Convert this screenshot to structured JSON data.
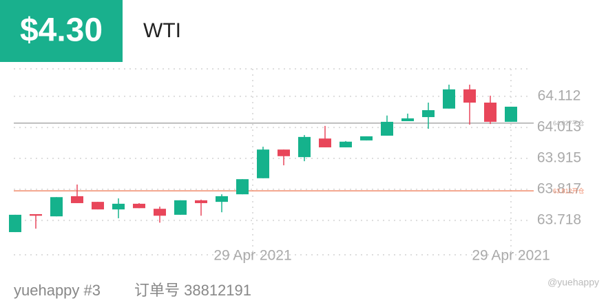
{
  "chart_data": {
    "type": "candlestick",
    "badge": "$4.30",
    "title": "WTI",
    "categories": [
      null,
      null,
      null,
      null,
      null,
      null,
      null,
      null,
      null,
      null,
      null,
      null,
      null,
      null,
      null,
      null,
      null,
      null,
      null,
      null,
      null,
      null,
      null,
      null,
      null
    ],
    "open": [
      63.681,
      63.738,
      63.731,
      63.795,
      63.777,
      63.753,
      63.771,
      63.755,
      63.736,
      63.782,
      63.777,
      63.801,
      63.852,
      63.943,
      63.919,
      63.978,
      63.95,
      63.972,
      63.987,
      64.033,
      64.046,
      64.073,
      64.134,
      64.092,
      64.031
    ],
    "high": [
      63.736,
      63.738,
      63.792,
      63.832,
      63.777,
      63.788,
      63.773,
      63.762,
      63.782,
      63.784,
      63.801,
      63.849,
      63.952,
      63.943,
      63.989,
      64.018,
      63.97,
      63.985,
      64.051,
      64.057,
      64.092,
      64.149,
      64.149,
      64.114,
      64.079
    ],
    "low": [
      63.681,
      63.692,
      63.731,
      63.773,
      63.753,
      63.725,
      63.757,
      63.711,
      63.736,
      63.733,
      63.744,
      63.801,
      63.852,
      63.893,
      63.906,
      63.95,
      63.95,
      63.972,
      63.987,
      64.033,
      64.009,
      64.073,
      64.022,
      64.024,
      64.031
    ],
    "close": [
      63.736,
      63.733,
      63.792,
      63.773,
      63.753,
      63.771,
      63.757,
      63.733,
      63.782,
      63.773,
      63.795,
      63.849,
      63.943,
      63.922,
      63.983,
      63.95,
      63.968,
      63.985,
      64.031,
      64.042,
      64.068,
      64.134,
      64.092,
      64.031,
      64.079
    ],
    "up_color": "#15b28c",
    "down_color": "#e8465a",
    "ylim": [
      63.609,
      64.21
    ],
    "yticks": [
      64.112,
      64.013,
      63.915,
      63.817,
      63.718
    ],
    "xticks": [
      {
        "value": 11.5,
        "label": "29 Apr 2021"
      },
      {
        "value": 24,
        "label": "29 Apr 2021"
      }
    ],
    "grid": true,
    "lines": [
      {
        "value": 64.027,
        "label": "64.027平仓",
        "color": "#aaaaaa"
      },
      {
        "value": 63.812,
        "label": "63.812开仓",
        "color": "#f08a6a"
      }
    ],
    "footer": [
      "yuehappy #3",
      "订单号 38812191"
    ],
    "watermark": "@yuehappy"
  }
}
